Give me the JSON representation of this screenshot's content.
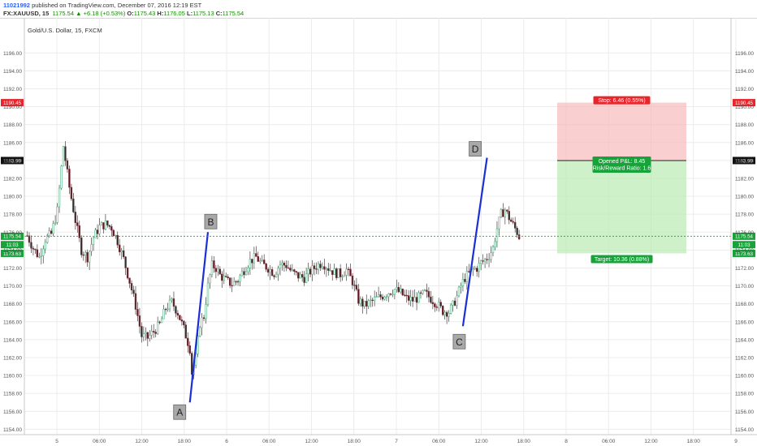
{
  "header": {
    "user": "11021992",
    "published": "published on TradingView.com, December 07, 2016 12:19 EST",
    "symbol": "FX:XAUUSD, 15",
    "last": "1175.54",
    "change": "+6.18 (+0.53%)",
    "open_label": "O:",
    "open": "1175.43",
    "high_label": "H:",
    "high": "1176.05",
    "low_label": "L:",
    "low": "1175.13",
    "close_label": "C:",
    "close": "1175.54"
  },
  "chart_data": {
    "type": "candlestick",
    "title": "Gold/U.S. Dollar, 15, FXCM",
    "ylim": [
      1153.0,
      1197.5
    ],
    "y_ticks": [
      1154,
      1156,
      1158,
      1160,
      1162,
      1164,
      1166,
      1168,
      1170,
      1172,
      1174,
      1176,
      1178,
      1180,
      1182,
      1184,
      1186,
      1188,
      1190,
      1192,
      1194,
      1196
    ],
    "x_ticks": [
      "5",
      "06:00",
      "12:00",
      "18:00",
      "6",
      "06:00",
      "12:00",
      "18:00",
      "7",
      "06:00",
      "12:00",
      "18:00",
      "8",
      "06:00",
      "12:00",
      "18:00",
      "9"
    ],
    "grid": true,
    "colors": {
      "up": "#53b987",
      "down": "#eb4d5c",
      "candle_body": "#2c2c2c",
      "pattern_line": "#1a2fd6",
      "price_line": "#17a23a"
    },
    "price_path": [
      [
        0,
        1175.6
      ],
      [
        3,
        1174.2
      ],
      [
        6,
        1173.2
      ],
      [
        9,
        1175.2
      ],
      [
        12,
        1175.8
      ],
      [
        15,
        1178.4
      ],
      [
        18,
        1185.6
      ],
      [
        21,
        1181.0
      ],
      [
        24,
        1177.3
      ],
      [
        27,
        1174.0
      ],
      [
        30,
        1173.2
      ],
      [
        33,
        1175.4
      ],
      [
        36,
        1176.6
      ],
      [
        39,
        1176.9
      ],
      [
        42,
        1176.5
      ],
      [
        45,
        1175.0
      ],
      [
        48,
        1173.0
      ],
      [
        51,
        1170.5
      ],
      [
        54,
        1167.8
      ],
      [
        57,
        1164.4
      ],
      [
        60,
        1164.2
      ],
      [
        63,
        1164.9
      ],
      [
        66,
        1165.7
      ],
      [
        69,
        1167.5
      ],
      [
        72,
        1168.2
      ],
      [
        75,
        1167.0
      ],
      [
        78,
        1165.2
      ],
      [
        81,
        1163.0
      ],
      [
        82,
        1160.3
      ],
      [
        84,
        1162.0
      ],
      [
        86,
        1165.8
      ],
      [
        88,
        1166.6
      ],
      [
        90,
        1170.0
      ],
      [
        92,
        1172.3
      ],
      [
        94,
        1172.0
      ],
      [
        96,
        1171.2
      ],
      [
        99,
        1170.6
      ],
      [
        102,
        1170.2
      ],
      [
        105,
        1170.7
      ],
      [
        108,
        1171.8
      ],
      [
        111,
        1172.8
      ],
      [
        114,
        1173.2
      ],
      [
        117,
        1172.4
      ],
      [
        120,
        1172.0
      ],
      [
        123,
        1171.4
      ],
      [
        126,
        1172.4
      ],
      [
        129,
        1172.3
      ],
      [
        132,
        1171.5
      ],
      [
        135,
        1171.1
      ],
      [
        138,
        1170.9
      ],
      [
        141,
        1171.6
      ],
      [
        144,
        1172.2
      ],
      [
        147,
        1172.6
      ],
      [
        150,
        1172.0
      ],
      [
        153,
        1171.5
      ],
      [
        156,
        1171.3
      ],
      [
        159,
        1171.8
      ],
      [
        162,
        1170.5
      ],
      [
        165,
        1168.4
      ],
      [
        168,
        1167.8
      ],
      [
        171,
        1168.2
      ],
      [
        174,
        1168.6
      ],
      [
        177,
        1168.9
      ],
      [
        180,
        1169.3
      ],
      [
        183,
        1169.6
      ],
      [
        186,
        1169.2
      ],
      [
        189,
        1168.6
      ],
      [
        192,
        1168.4
      ],
      [
        195,
        1168.7
      ],
      [
        198,
        1169.2
      ],
      [
        201,
        1168.6
      ],
      [
        204,
        1168.0
      ],
      [
        207,
        1167.2
      ],
      [
        210,
        1167.1
      ],
      [
        212,
        1167.8
      ],
      [
        214,
        1168.8
      ],
      [
        216,
        1170.0
      ],
      [
        218,
        1170.9
      ],
      [
        220,
        1171.4
      ],
      [
        222,
        1171.8
      ],
      [
        224,
        1172.0
      ],
      [
        226,
        1172.6
      ],
      [
        228,
        1172.9
      ],
      [
        230,
        1173.4
      ],
      [
        232,
        1174.2
      ],
      [
        234,
        1176.4
      ],
      [
        236,
        1178.0
      ],
      [
        238,
        1178.5
      ],
      [
        240,
        1177.6
      ],
      [
        242,
        1176.8
      ],
      [
        244,
        1176.0
      ],
      [
        245,
        1175.5
      ]
    ],
    "current_price": 1175.54,
    "price_labels": [
      {
        "text": "1190.45",
        "value": 1190.45,
        "color": "#e8252b"
      },
      {
        "text": "1183.99",
        "value": 1183.99,
        "color": "#111111"
      },
      {
        "text": "1175.54",
        "value": 1175.54,
        "color": "#17a23a"
      },
      {
        "text": "11:03",
        "value": 1174.6,
        "color": "#17a23a"
      },
      {
        "text": "1173.63",
        "value": 1173.63,
        "color": "#17a23a"
      }
    ],
    "position": {
      "stop": 1190.45,
      "entry": 1183.99,
      "target": 1173.63,
      "stop_label": "Stop: 6.46 (0.55%)",
      "pnl_label": "Opened P&L: 8.45",
      "rr_label": "Risk/Reward Ratio: 1.6",
      "target_label": "Target: 10.36 (0.88%)"
    },
    "pattern_points": [
      {
        "label": "A",
        "bar": 81,
        "price": 1157.0
      },
      {
        "label": "B",
        "bar": 90,
        "price": 1176.0
      },
      {
        "label": "C",
        "bar": 217,
        "price": 1165.5
      },
      {
        "label": "D",
        "bar": 229,
        "price": 1184.3
      }
    ]
  }
}
